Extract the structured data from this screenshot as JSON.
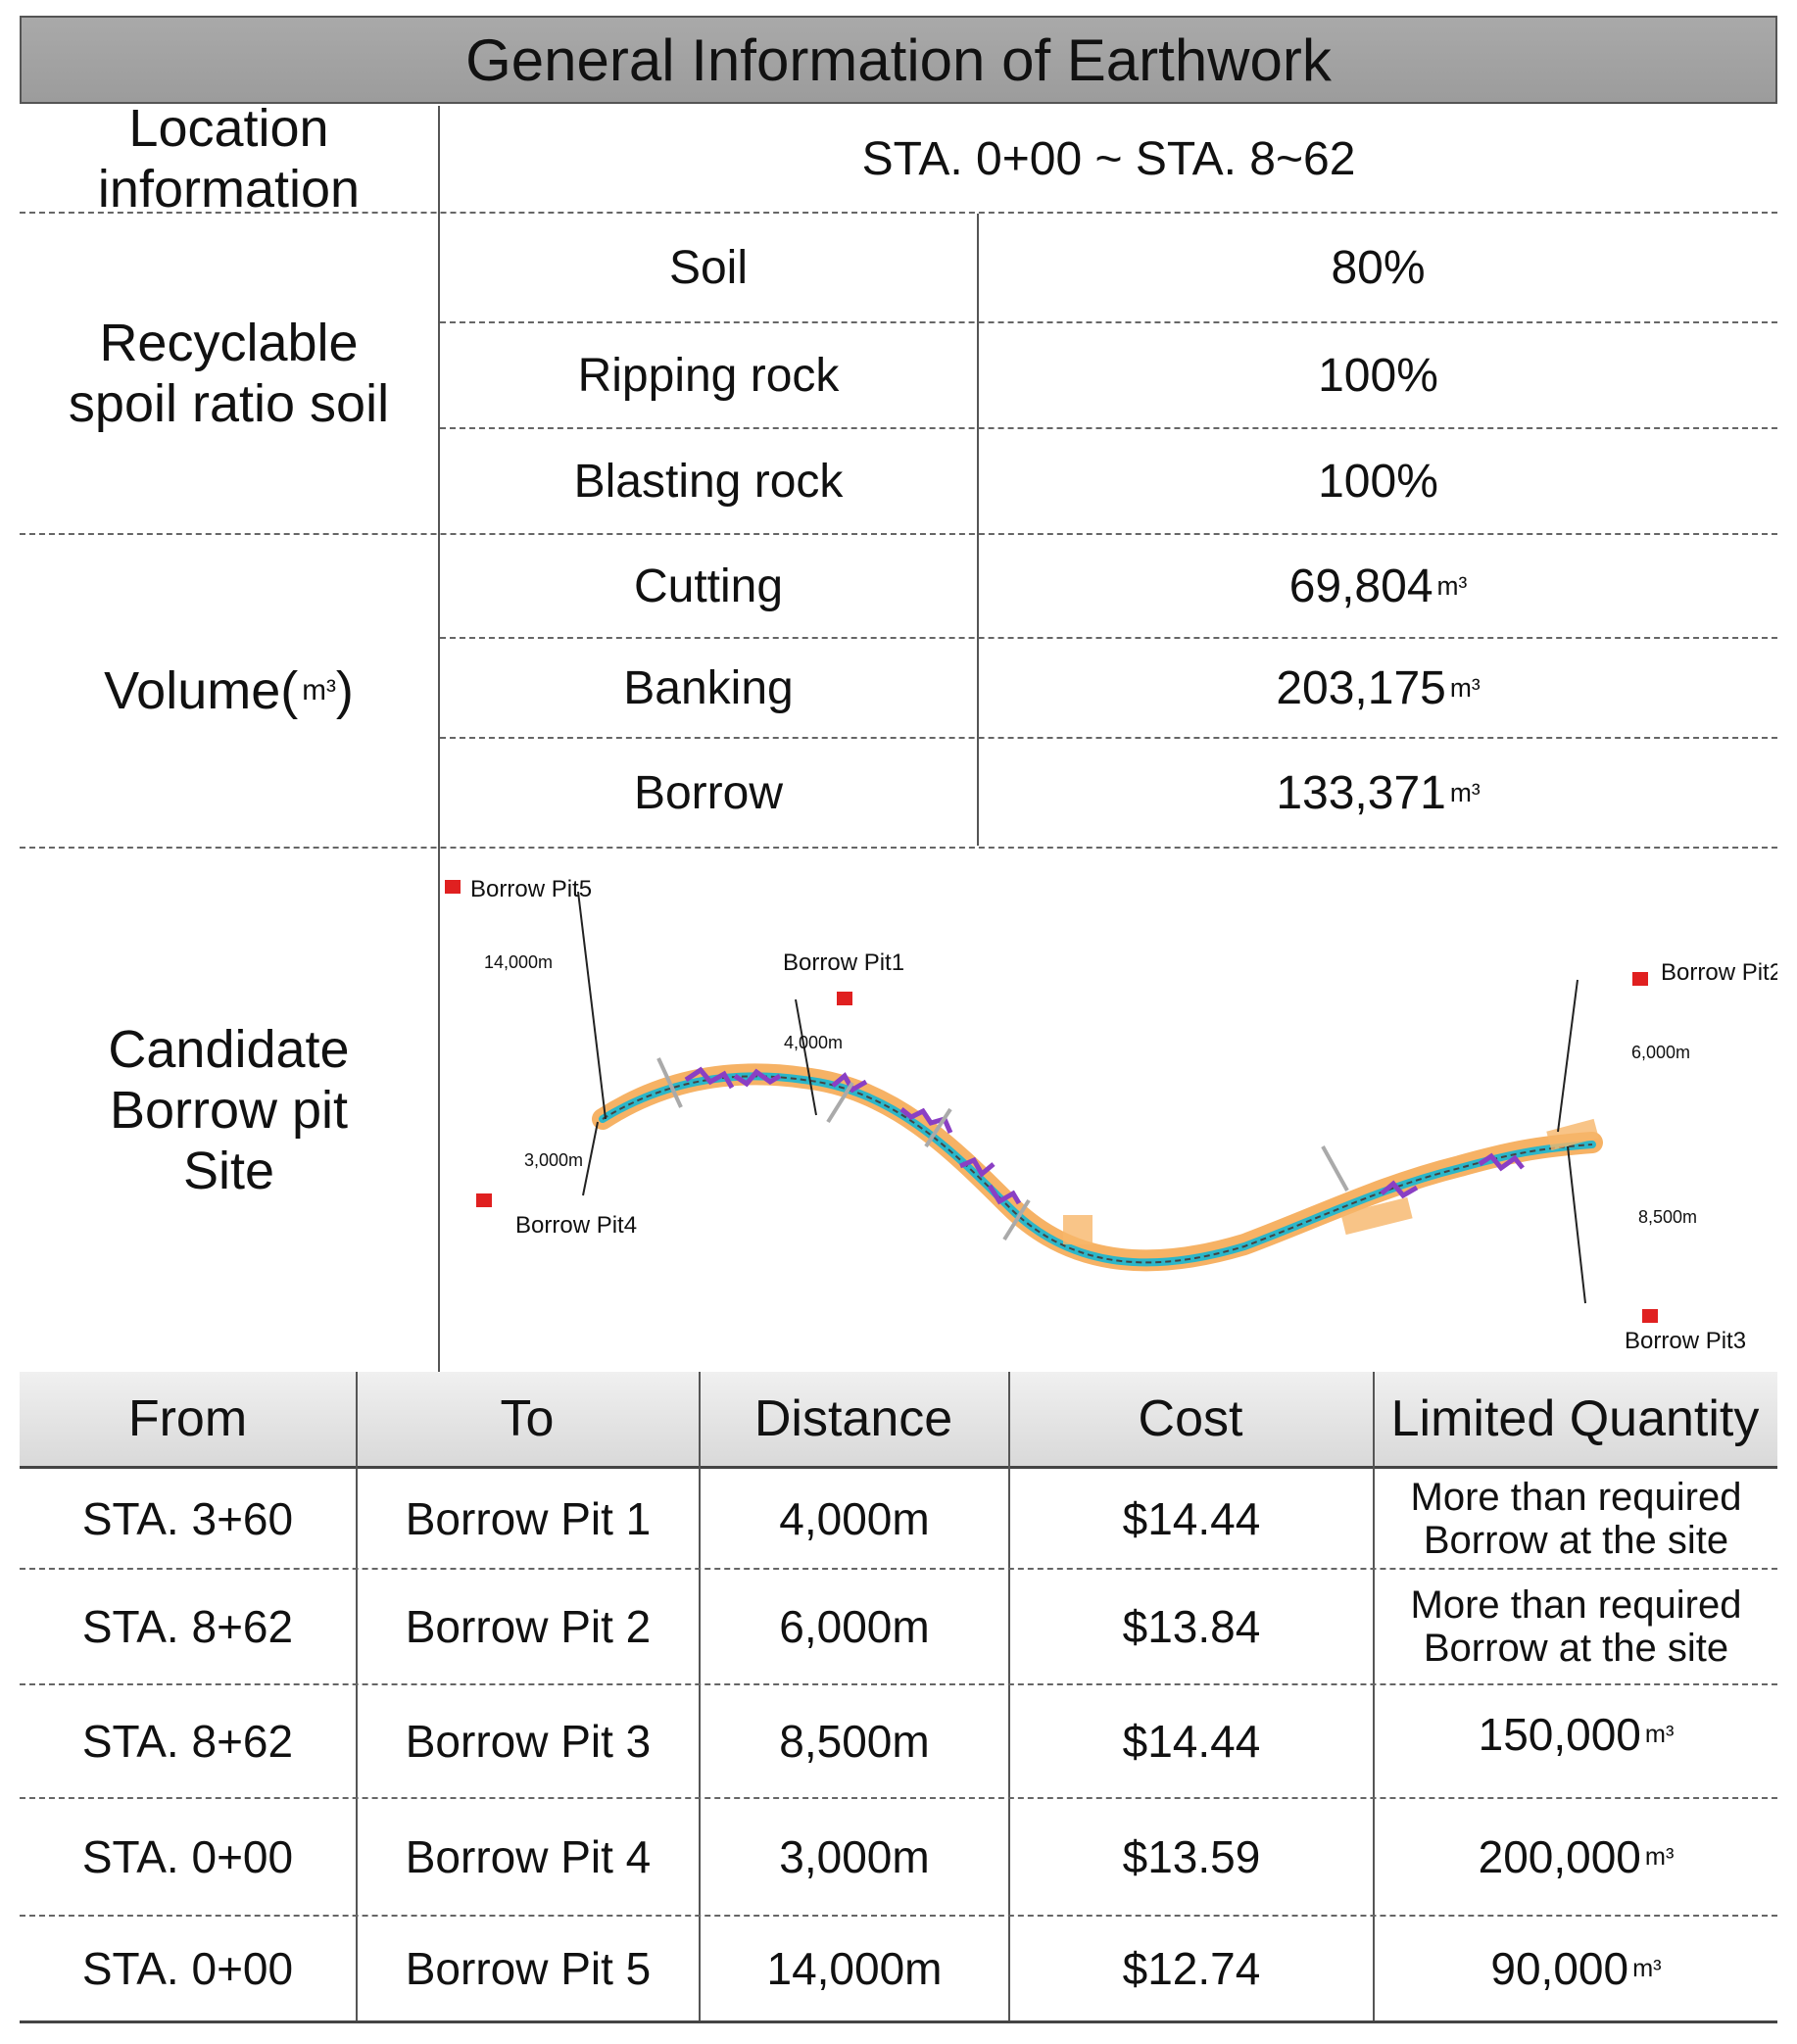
{
  "title": "General Information of Earthwork",
  "location": {
    "label": "Location information",
    "value": "STA. 0+00 ~ STA. 8~62"
  },
  "recyclable": {
    "label_line1": "Recyclable",
    "label_line2": "spoil ratio soil",
    "rows": [
      {
        "name": "Soil",
        "value": "80%"
      },
      {
        "name": "Ripping rock",
        "value": "100%"
      },
      {
        "name": "Blasting rock",
        "value": "100%"
      }
    ]
  },
  "volume": {
    "label": "Volume(",
    "unit": "m³",
    "label_close": ")",
    "rows": [
      {
        "name": "Cutting",
        "value": "69,804",
        "unit": "m³"
      },
      {
        "name": "Banking",
        "value": "203,175",
        "unit": "m³"
      },
      {
        "name": "Borrow",
        "value": "133,371",
        "unit": "m³"
      }
    ]
  },
  "candidate": {
    "label_line1": "Candidate",
    "label_line2": "Borrow pit",
    "label_line3": "Site"
  },
  "map": {
    "pits": [
      {
        "label": "Borrow Pit5",
        "distance": "14,000m"
      },
      {
        "label": "Borrow Pit1",
        "distance": "4,000m"
      },
      {
        "label": "Borrow Pit2",
        "distance": "6,000m"
      },
      {
        "label": "Borrow Pit4",
        "distance": "3,000m"
      },
      {
        "label": "Borrow Pit3",
        "distance": "8,500m"
      }
    ],
    "colors": {
      "pit_marker": "#e02020",
      "route_cyan": "#2bb6c9",
      "route_orange": "#f4a54a",
      "route_purple": "#8a3fc4"
    }
  },
  "table": {
    "headers": [
      "From",
      "To",
      "Distance",
      "Cost",
      "Limited Quantity"
    ],
    "rows": [
      {
        "from": "STA. 3+60",
        "to": "Borrow Pit 1",
        "distance": "4,000m",
        "cost": "$14.44",
        "limited_line1": "More than required",
        "limited_line2": "Borrow at the site",
        "limited_unit": ""
      },
      {
        "from": "STA. 8+62",
        "to": "Borrow Pit 2",
        "distance": "6,000m",
        "cost": "$13.84",
        "limited_line1": "More than required",
        "limited_line2": "Borrow at the site",
        "limited_unit": ""
      },
      {
        "from": "STA. 8+62",
        "to": "Borrow Pit 3",
        "distance": "8,500m",
        "cost": "$14.44",
        "limited_line1": "150,000",
        "limited_line2": "",
        "limited_unit": "m³"
      },
      {
        "from": "STA. 0+00",
        "to": "Borrow Pit 4",
        "distance": "3,000m",
        "cost": "$13.59",
        "limited_line1": "200,000",
        "limited_line2": "",
        "limited_unit": "m³"
      },
      {
        "from": "STA. 0+00",
        "to": "Borrow Pit 5",
        "distance": "14,000m",
        "cost": "$12.74",
        "limited_line1": "90,000",
        "limited_line2": "",
        "limited_unit": "m³"
      }
    ]
  }
}
